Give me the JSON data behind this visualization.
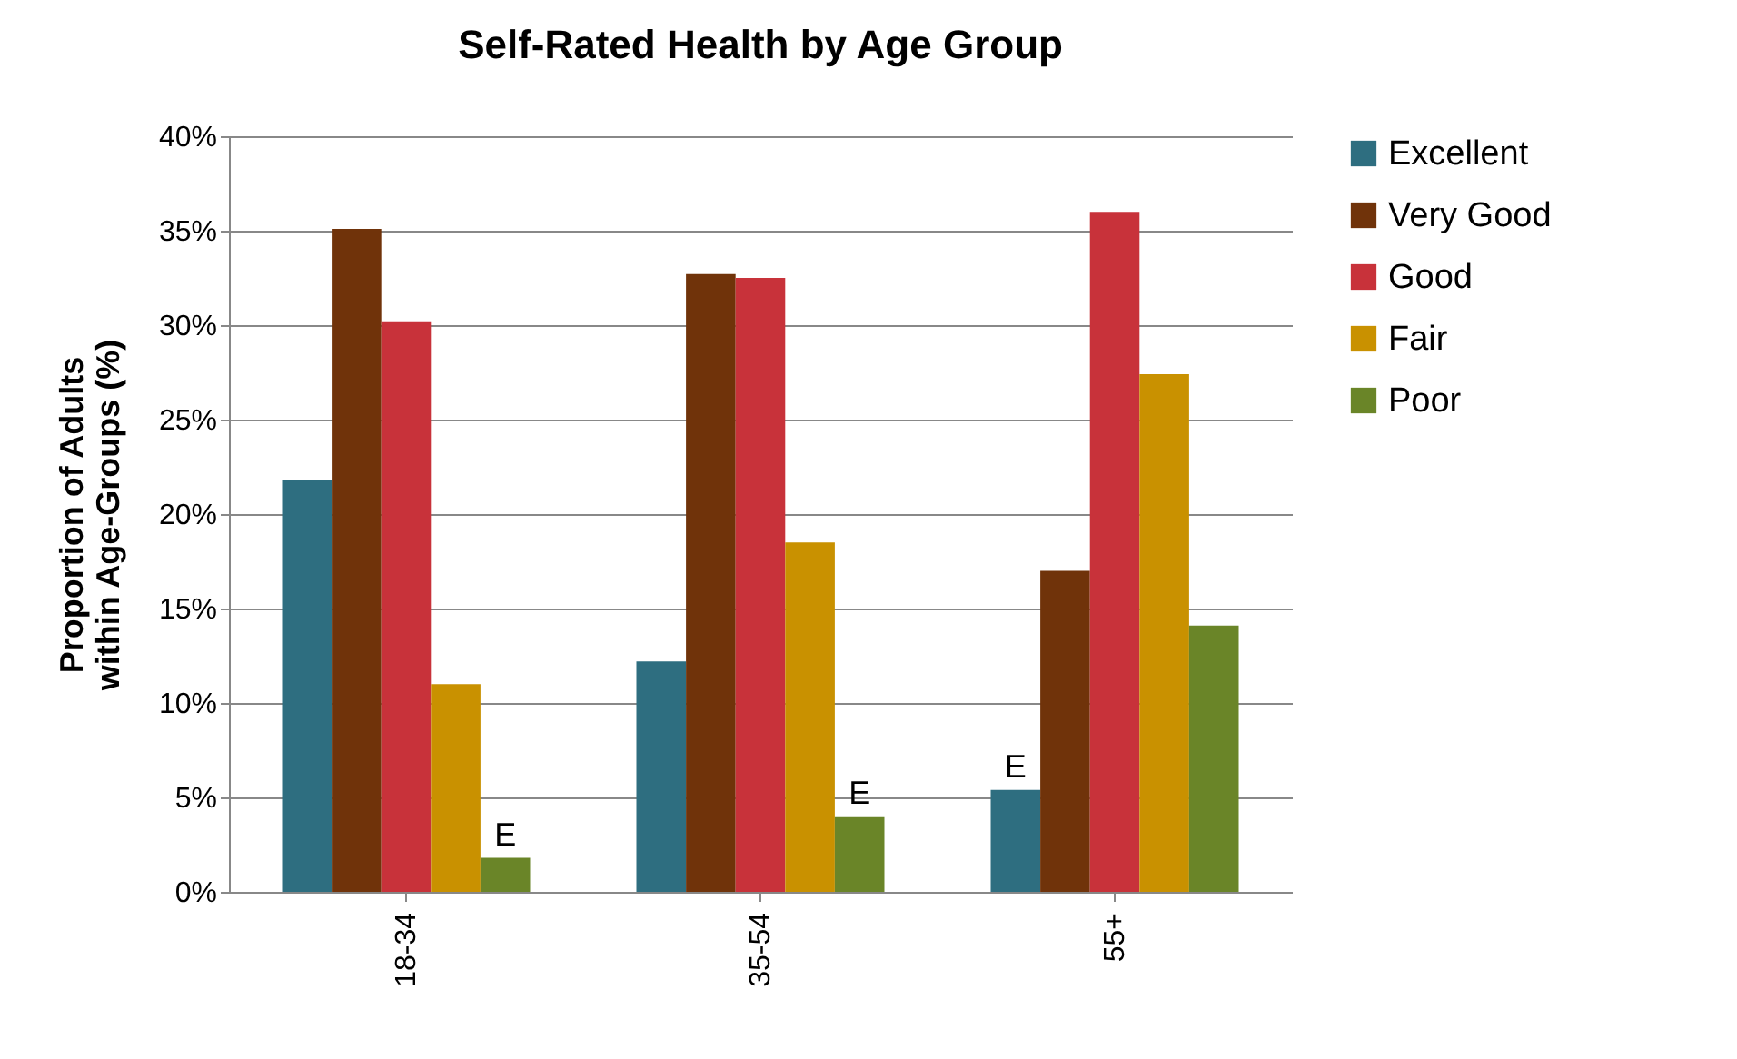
{
  "chart_data": {
    "type": "bar",
    "title": "Self-Rated Health by Age Group",
    "ylabel": "Proportion of Adults within Age-Groups (%)",
    "categories": [
      "18-34",
      "35-54",
      "55+"
    ],
    "series": [
      {
        "name": "Excellent",
        "color": "#2e6e80",
        "values": [
          21.8,
          12.2,
          5.4
        ],
        "value_labels": [
          null,
          null,
          "E"
        ]
      },
      {
        "name": "Very Good",
        "color": "#70330a",
        "values": [
          35.1,
          32.7,
          17.0
        ]
      },
      {
        "name": "Good",
        "color": "#c8323a",
        "values": [
          30.2,
          32.5,
          36.0
        ]
      },
      {
        "name": "Fair",
        "color": "#c99100",
        "values": [
          11.0,
          18.5,
          27.4
        ]
      },
      {
        "name": "Poor",
        "color": "#6a8528",
        "values": [
          1.8,
          4.0,
          14.1
        ],
        "value_labels": [
          "E",
          "E",
          null
        ]
      }
    ],
    "ylim": [
      0,
      40
    ],
    "yticks": [
      {
        "value": 0,
        "label": "0%"
      },
      {
        "value": 5,
        "label": "5%"
      },
      {
        "value": 10,
        "label": "10%"
      },
      {
        "value": 15,
        "label": "15%"
      },
      {
        "value": 20,
        "label": "20%"
      },
      {
        "value": 25,
        "label": "25%"
      },
      {
        "value": 30,
        "label": "30%"
      },
      {
        "value": 35,
        "label": "35%"
      },
      {
        "value": 40,
        "label": "40%"
      }
    ],
    "grid": "y",
    "legend": "right"
  }
}
